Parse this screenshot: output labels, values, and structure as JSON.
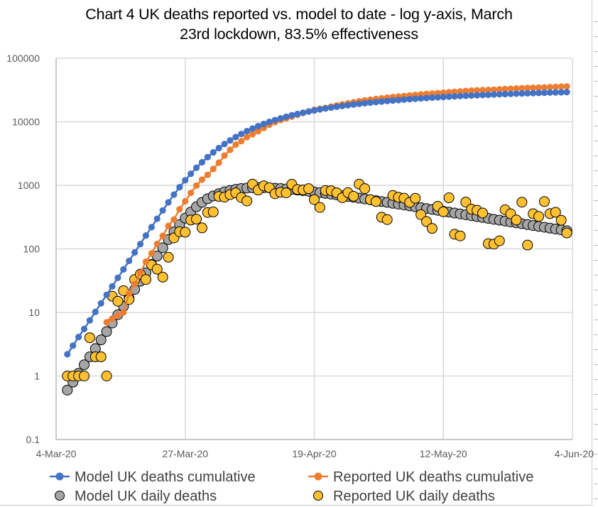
{
  "chart_data": {
    "type": "scatter",
    "title": "Chart 4 UK deaths reported vs. model to date - log y-axis, March 23rd lockdown, 83.5% effectiveness",
    "title_lines": [
      "Chart 4 UK deaths reported vs. model to date - log y-axis, March",
      "23rd lockdown, 83.5% effectiveness"
    ],
    "xlabel": "",
    "ylabel": "",
    "yscale": "log",
    "ylim": [
      0.1,
      100000
    ],
    "xlim": [
      "2020-03-04",
      "2020-06-04"
    ],
    "x_tick_labels": [
      "4-Mar-20",
      "27-Mar-20",
      "19-Apr-20",
      "12-May-20",
      "4-Jun-20"
    ],
    "x_tick_day_offsets": [
      0,
      23,
      46,
      69,
      92
    ],
    "y_tick_labels": [
      "0.1",
      "1",
      "10",
      "100",
      "1000",
      "10000",
      "100000"
    ],
    "y_tick_values": [
      0.1,
      1,
      10,
      100,
      1000,
      10000,
      100000
    ],
    "grid": true,
    "legend_position": "bottom",
    "x_unit": "days since 4-Mar-20",
    "series": [
      {
        "name": "Model UK deaths cumulative",
        "color": "#4472C4",
        "marker": "dot-line",
        "x": [
          2,
          3,
          4,
          5,
          6,
          7,
          8,
          9,
          10,
          11,
          12,
          13,
          14,
          15,
          16,
          17,
          18,
          19,
          20,
          21,
          22,
          23,
          24,
          25,
          26,
          27,
          28,
          29,
          30,
          31,
          32,
          33,
          34,
          35,
          36,
          37,
          38,
          39,
          40,
          41,
          42,
          43,
          44,
          45,
          46,
          47,
          48,
          49,
          50,
          51,
          52,
          53,
          54,
          55,
          56,
          57,
          58,
          59,
          60,
          61,
          62,
          63,
          64,
          65,
          66,
          67,
          68,
          69,
          70,
          71,
          72,
          73,
          74,
          75,
          76,
          77,
          78,
          79,
          80,
          81,
          82,
          83,
          84,
          85,
          86,
          87,
          88,
          89,
          90,
          91
        ],
        "values": [
          2.2,
          3.0,
          4.1,
          5.5,
          7.5,
          10.2,
          13.9,
          18.9,
          25.7,
          35,
          47.6,
          64.7,
          88,
          119,
          162,
          220,
          298,
          402,
          540,
          715,
          935,
          1200,
          1520,
          1890,
          2310,
          2780,
          3300,
          3860,
          4460,
          5090,
          5750,
          6430,
          7130,
          7840,
          8550,
          9260,
          9960,
          10650,
          11330,
          12000,
          12650,
          13280,
          13900,
          14500,
          15080,
          15640,
          16190,
          16720,
          17230,
          17730,
          18210,
          18680,
          19130,
          19570,
          20000,
          20410,
          20810,
          21200,
          21580,
          21950,
          22310,
          22660,
          23000,
          23330,
          23650,
          23960,
          24260,
          24550,
          24840,
          25120,
          25390,
          25650,
          25900,
          26150,
          26390,
          26620,
          26850,
          27070,
          27280,
          27490,
          27690,
          27890,
          28080,
          28270,
          28450,
          28630,
          28800,
          28970,
          29130,
          29290
        ]
      },
      {
        "name": "Reported UK deaths cumulative",
        "color": "#ED7D31",
        "marker": "dot-line",
        "x": [
          9,
          10,
          11,
          12,
          13,
          14,
          15,
          16,
          17,
          18,
          19,
          20,
          21,
          22,
          23,
          24,
          25,
          26,
          27,
          28,
          29,
          30,
          31,
          32,
          33,
          34,
          35,
          36,
          37,
          38,
          39,
          40,
          41,
          42,
          43,
          44,
          45,
          46,
          47,
          48,
          49,
          50,
          51,
          52,
          53,
          54,
          55,
          56,
          57,
          58,
          59,
          60,
          61,
          62,
          63,
          64,
          65,
          66,
          67,
          68,
          69,
          70,
          71,
          72,
          73,
          74,
          75,
          76,
          77,
          78,
          79,
          80,
          81,
          82,
          83,
          84,
          85,
          86,
          87,
          88,
          89,
          90,
          91
        ],
        "values": [
          7,
          8,
          9,
          10,
          20,
          28,
          42,
          63,
          85,
          120,
          160,
          230,
          290,
          420,
          560,
          760,
          990,
          1230,
          1460,
          1810,
          2270,
          2940,
          3620,
          4360,
          4960,
          5740,
          6370,
          7100,
          7980,
          8960,
          9880,
          10650,
          11330,
          12070,
          12870,
          13730,
          14580,
          15460,
          16060,
          16510,
          17340,
          18100,
          18740,
          19510,
          20320,
          21090,
          21680,
          22260,
          22840,
          23390,
          24030,
          24550,
          25060,
          25420,
          25950,
          26420,
          26970,
          27500,
          27820,
          28220,
          28720,
          29160,
          29560,
          30080,
          30560,
          30910,
          31240,
          31530,
          31780,
          32000,
          32430,
          32790,
          33110,
          33420,
          33770,
          34080,
          34330,
          34530,
          34750,
          35020,
          35360,
          35720,
          36040
        ]
      },
      {
        "name": "Model UK daily deaths",
        "color": "#A5A5A5",
        "marker": "circle-outlined",
        "x": [
          2,
          3,
          4,
          5,
          6,
          7,
          8,
          9,
          10,
          11,
          12,
          13,
          14,
          15,
          16,
          17,
          18,
          19,
          20,
          21,
          22,
          23,
          24,
          25,
          26,
          27,
          28,
          29,
          30,
          31,
          32,
          33,
          34,
          35,
          36,
          37,
          38,
          39,
          40,
          41,
          42,
          43,
          44,
          45,
          46,
          47,
          48,
          49,
          50,
          51,
          52,
          53,
          54,
          55,
          56,
          57,
          58,
          59,
          60,
          61,
          62,
          63,
          64,
          65,
          66,
          67,
          68,
          69,
          70,
          71,
          72,
          73,
          74,
          75,
          76,
          77,
          78,
          79,
          80,
          81,
          82,
          83,
          84,
          85,
          86,
          87,
          88,
          89,
          90,
          91
        ],
        "values": [
          0.6,
          0.8,
          1.1,
          1.5,
          2.0,
          2.7,
          3.7,
          5.0,
          6.8,
          9.2,
          12.5,
          17,
          23,
          31,
          42,
          57,
          77,
          104,
          140,
          185,
          240,
          305,
          380,
          460,
          540,
          615,
          680,
          740,
          790,
          830,
          865,
          890,
          905,
          915,
          920,
          918,
          912,
          902,
          890,
          876,
          860,
          843,
          825,
          806,
          787,
          767,
          747,
          727,
          707,
          687,
          667,
          648,
          629,
          610,
          592,
          574,
          556,
          539,
          522,
          506,
          490,
          475,
          460,
          445,
          431,
          417,
          404,
          391,
          379,
          367,
          355,
          344,
          333,
          322,
          312,
          302,
          292,
          283,
          274,
          265,
          257,
          249,
          241,
          233,
          226,
          219,
          212,
          205,
          199,
          193
        ]
      },
      {
        "name": "Reported UK daily deaths",
        "color": "#FFC032",
        "marker": "circle-outlined",
        "x": [
          2,
          3,
          4,
          5,
          6,
          7,
          8,
          9,
          10,
          11,
          12,
          13,
          14,
          15,
          16,
          17,
          18,
          19,
          20,
          21,
          22,
          23,
          24,
          25,
          26,
          27,
          28,
          29,
          30,
          31,
          32,
          33,
          34,
          35,
          36,
          37,
          38,
          39,
          40,
          41,
          42,
          43,
          44,
          45,
          46,
          47,
          48,
          49,
          50,
          51,
          52,
          53,
          54,
          55,
          56,
          57,
          58,
          59,
          60,
          61,
          62,
          63,
          64,
          65,
          66,
          67,
          68,
          69,
          70,
          71,
          72,
          73,
          74,
          75,
          76,
          77,
          78,
          79,
          80,
          81,
          82,
          83,
          84,
          85,
          86,
          87,
          88,
          89,
          90,
          91
        ],
        "values": [
          1,
          1,
          1,
          1,
          4,
          2,
          2,
          1,
          18,
          15,
          22,
          16,
          33,
          40,
          33,
          56,
          48,
          36,
          74,
          149,
          186,
          183,
          284,
          294,
          214,
          374,
          382,
          670,
          652,
          714,
          760,
          644,
          568,
          1044,
          842,
          980,
          917,
          737,
          778,
          761,
          1038,
          861,
          847,
          888,
          596,
          449,
          828,
          823,
          763,
          638,
          768,
          674,
          1044,
          888,
          596,
          556,
          315,
          289,
          693,
          649,
          627,
          539,
          626,
          346,
          269,
          210,
          468,
          384,
          637,
          170,
          160,
          545,
          422,
          405,
          367,
          121,
          119,
          134,
          413,
          356,
          285,
          543,
          115,
          357,
          324,
          556,
          359,
          377,
          282,
          178
        ]
      }
    ]
  }
}
